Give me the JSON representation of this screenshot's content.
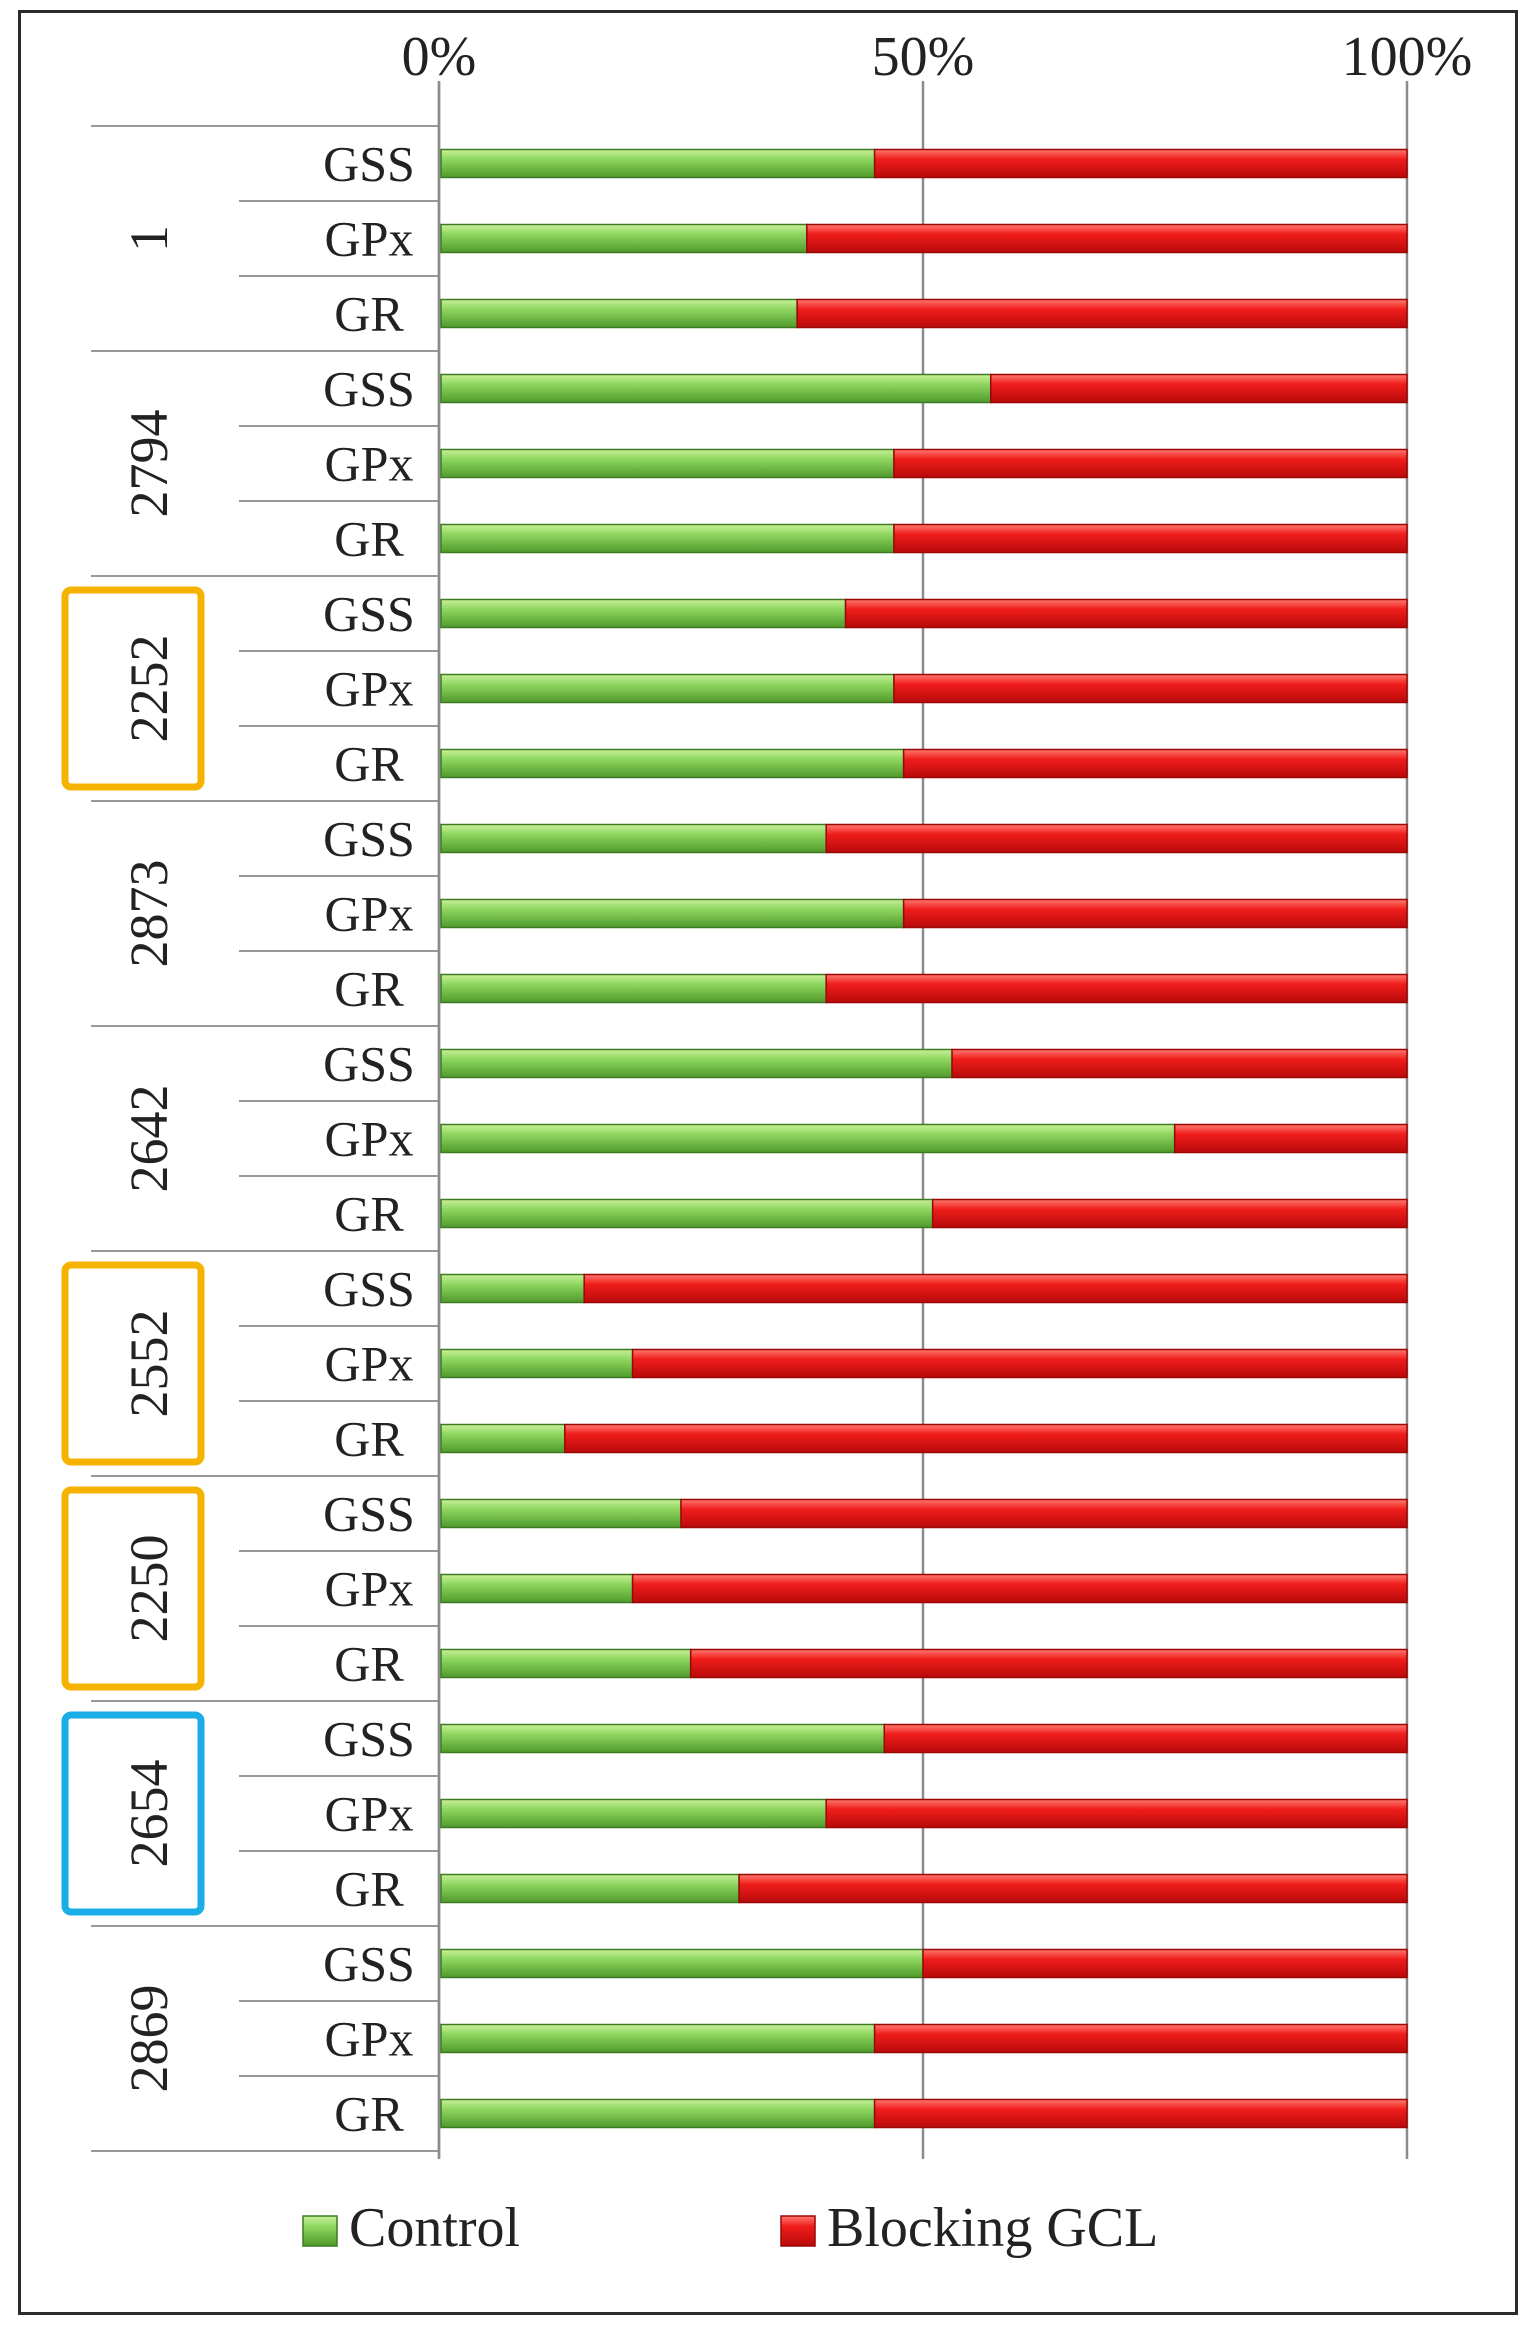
{
  "chart_data": {
    "type": "bar",
    "stacked": "percent",
    "orientation": "horizontal",
    "xlim": [
      0,
      100
    ],
    "x_ticks": [
      "0%",
      "50%",
      "100%"
    ],
    "grid": true,
    "legend_placement": "bottom",
    "groups": [
      {
        "label": "1",
        "highlight": "none",
        "rows": [
          {
            "label": "GSS",
            "control": 45
          },
          {
            "label": "GPx",
            "control": 38
          },
          {
            "label": "GR",
            "control": 37
          }
        ]
      },
      {
        "label": "2794",
        "highlight": "none",
        "rows": [
          {
            "label": "GSS",
            "control": 57
          },
          {
            "label": "GPx",
            "control": 47
          },
          {
            "label": "GR",
            "control": 47
          }
        ]
      },
      {
        "label": "2252",
        "highlight": "orange",
        "rows": [
          {
            "label": "GSS",
            "control": 42
          },
          {
            "label": "GPx",
            "control": 47
          },
          {
            "label": "GR",
            "control": 48
          }
        ]
      },
      {
        "label": "2873",
        "highlight": "none",
        "rows": [
          {
            "label": "GSS",
            "control": 40
          },
          {
            "label": "GPx",
            "control": 48
          },
          {
            "label": "GR",
            "control": 40
          }
        ]
      },
      {
        "label": "2642",
        "highlight": "none",
        "rows": [
          {
            "label": "GSS",
            "control": 53
          },
          {
            "label": "GPx",
            "control": 76
          },
          {
            "label": "GR",
            "control": 51
          }
        ]
      },
      {
        "label": "2552",
        "highlight": "orange",
        "rows": [
          {
            "label": "GSS",
            "control": 15
          },
          {
            "label": "GPx",
            "control": 20
          },
          {
            "label": "GR",
            "control": 13
          }
        ]
      },
      {
        "label": "2250",
        "highlight": "orange",
        "rows": [
          {
            "label": "GSS",
            "control": 25
          },
          {
            "label": "GPx",
            "control": 20
          },
          {
            "label": "GR",
            "control": 26
          }
        ]
      },
      {
        "label": "2654",
        "highlight": "blue",
        "rows": [
          {
            "label": "GSS",
            "control": 46
          },
          {
            "label": "GPx",
            "control": 40
          },
          {
            "label": "GR",
            "control": 31
          }
        ]
      },
      {
        "label": "2869",
        "highlight": "none",
        "rows": [
          {
            "label": "GSS",
            "control": 50
          },
          {
            "label": "GPx",
            "control": 45
          },
          {
            "label": "GR",
            "control": 45
          }
        ]
      }
    ],
    "series": [
      {
        "name": "Control",
        "color": "#7dc855"
      },
      {
        "name": "Blocking GCL",
        "color": "#e81818"
      }
    ],
    "highlight_colors": {
      "orange": "#f5b300",
      "blue": "#1aaee8"
    }
  }
}
